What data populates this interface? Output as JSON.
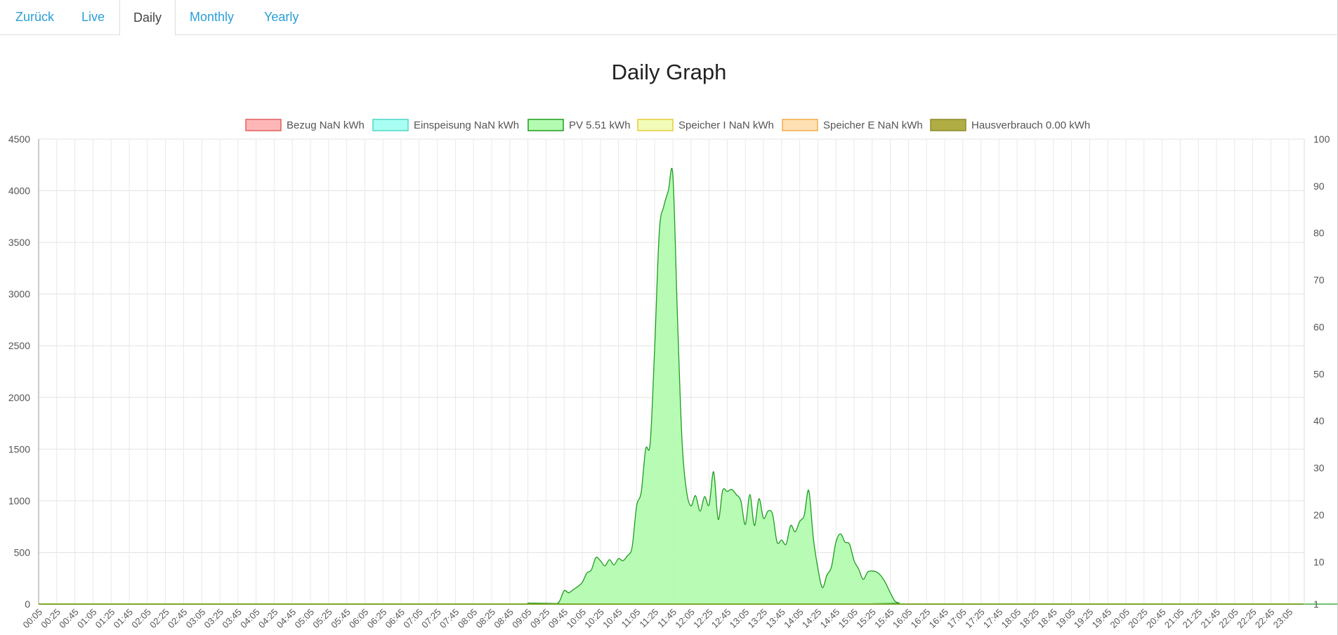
{
  "nav": {
    "tabs": [
      {
        "label": "Zurück",
        "active": false
      },
      {
        "label": "Live",
        "active": false
      },
      {
        "label": "Daily",
        "active": true
      },
      {
        "label": "Monthly",
        "active": false
      },
      {
        "label": "Yearly",
        "active": false
      }
    ]
  },
  "colors": {
    "link": "#2a9fd6",
    "pv_fill": "#b3fbb0",
    "pv_line": "#1f9c1f",
    "grid": "#e5e5e5"
  },
  "chart_data": {
    "type": "area",
    "title": "Daily Graph",
    "legend": [
      {
        "label": "Bezug NaN kWh",
        "fill": "#ffb6b6",
        "stroke": "#e06060"
      },
      {
        "label": "Einspeisung NaN kWh",
        "fill": "#a9fff3",
        "stroke": "#4fd7c5"
      },
      {
        "label": "PV 5.51 kWh",
        "fill": "#b3fbb0",
        "stroke": "#1f9c1f"
      },
      {
        "label": "Speicher I NaN kWh",
        "fill": "#f2fcb8",
        "stroke": "#e5cc3d"
      },
      {
        "label": "Speicher E NaN kWh",
        "fill": "#ffe0b3",
        "stroke": "#f0ad4e"
      },
      {
        "label": "Hausverbrauch 0.00 kWh",
        "fill": "#b0ad45",
        "stroke": "#8e8b25"
      }
    ],
    "legend_position": "top",
    "grid": true,
    "y_left": {
      "min": 0,
      "max": 4500,
      "ticks": [
        "0",
        "500",
        "1000",
        "1500",
        "2000",
        "2500",
        "3000",
        "3500",
        "4000",
        "4500"
      ]
    },
    "y_right": {
      "ticks": [
        "1",
        "10",
        "20",
        "30",
        "40",
        "50",
        "60",
        "70",
        "80",
        "90",
        "100"
      ]
    },
    "x_ticks": [
      "00:05",
      "00:25",
      "00:45",
      "01:05",
      "01:25",
      "01:45",
      "02:05",
      "02:25",
      "02:45",
      "03:05",
      "03:25",
      "03:45",
      "04:05",
      "04:25",
      "04:45",
      "05:05",
      "05:25",
      "05:45",
      "06:05",
      "06:25",
      "06:45",
      "07:05",
      "07:25",
      "07:45",
      "08:05",
      "08:25",
      "08:45",
      "09:05",
      "09:25",
      "09:45",
      "10:05",
      "10:25",
      "10:45",
      "11:05",
      "11:25",
      "11:45",
      "12:05",
      "12:25",
      "12:45",
      "13:05",
      "13:25",
      "13:45",
      "14:05",
      "14:25",
      "14:45",
      "15:05",
      "15:25",
      "15:45",
      "16:05",
      "16:25",
      "16:45",
      "17:05",
      "17:25",
      "17:45",
      "18:05",
      "18:25",
      "18:45",
      "19:05",
      "19:25",
      "19:45",
      "20:05",
      "20:25",
      "20:45",
      "21:05",
      "21:25",
      "21:45",
      "22:05",
      "22:25",
      "22:45",
      "23:05"
    ],
    "series": [
      {
        "name": "PV",
        "points": [
          [
            "00:05",
            0
          ],
          [
            "09:00",
            0
          ],
          [
            "09:05",
            10
          ],
          [
            "09:15",
            0
          ],
          [
            "09:25",
            5
          ],
          [
            "09:35",
            0
          ],
          [
            "09:40",
            30
          ],
          [
            "09:45",
            130
          ],
          [
            "09:50",
            110
          ],
          [
            "09:55",
            140
          ],
          [
            "10:00",
            170
          ],
          [
            "10:05",
            210
          ],
          [
            "10:10",
            300
          ],
          [
            "10:15",
            330
          ],
          [
            "10:20",
            450
          ],
          [
            "10:25",
            420
          ],
          [
            "10:30",
            370
          ],
          [
            "10:35",
            430
          ],
          [
            "10:40",
            380
          ],
          [
            "10:45",
            440
          ],
          [
            "10:50",
            420
          ],
          [
            "10:55",
            470
          ],
          [
            "11:00",
            550
          ],
          [
            "11:05",
            950
          ],
          [
            "11:10",
            1080
          ],
          [
            "11:15",
            1500
          ],
          [
            "11:20",
            1560
          ],
          [
            "11:25",
            2500
          ],
          [
            "11:30",
            3600
          ],
          [
            "11:35",
            3850
          ],
          [
            "11:40",
            4000
          ],
          [
            "11:45",
            4150
          ],
          [
            "11:50",
            2800
          ],
          [
            "11:55",
            1600
          ],
          [
            "12:00",
            1100
          ],
          [
            "12:05",
            950
          ],
          [
            "12:10",
            1050
          ],
          [
            "12:15",
            900
          ],
          [
            "12:20",
            1040
          ],
          [
            "12:25",
            960
          ],
          [
            "12:30",
            1280
          ],
          [
            "12:35",
            820
          ],
          [
            "12:40",
            1100
          ],
          [
            "12:45",
            1090
          ],
          [
            "12:50",
            1110
          ],
          [
            "12:55",
            1060
          ],
          [
            "13:00",
            1000
          ],
          [
            "13:05",
            770
          ],
          [
            "13:10",
            1060
          ],
          [
            "13:15",
            760
          ],
          [
            "13:20",
            1020
          ],
          [
            "13:25",
            830
          ],
          [
            "13:30",
            900
          ],
          [
            "13:35",
            870
          ],
          [
            "13:40",
            600
          ],
          [
            "13:45",
            620
          ],
          [
            "13:50",
            580
          ],
          [
            "13:55",
            760
          ],
          [
            "14:00",
            700
          ],
          [
            "14:05",
            800
          ],
          [
            "14:10",
            860
          ],
          [
            "14:15",
            1100
          ],
          [
            "14:20",
            640
          ],
          [
            "14:25",
            350
          ],
          [
            "14:30",
            160
          ],
          [
            "14:35",
            280
          ],
          [
            "14:40",
            360
          ],
          [
            "14:45",
            600
          ],
          [
            "14:50",
            680
          ],
          [
            "14:55",
            600
          ],
          [
            "15:00",
            580
          ],
          [
            "15:05",
            420
          ],
          [
            "15:10",
            340
          ],
          [
            "15:15",
            240
          ],
          [
            "15:20",
            310
          ],
          [
            "15:25",
            320
          ],
          [
            "15:30",
            310
          ],
          [
            "15:35",
            270
          ],
          [
            "15:40",
            200
          ],
          [
            "15:45",
            110
          ],
          [
            "15:50",
            30
          ],
          [
            "15:55",
            10
          ],
          [
            "16:00",
            0
          ],
          [
            "23:59",
            0
          ]
        ]
      },
      {
        "name": "Hausverbrauch",
        "points": [
          [
            "00:05",
            0
          ],
          [
            "23:59",
            0
          ]
        ]
      }
    ]
  }
}
